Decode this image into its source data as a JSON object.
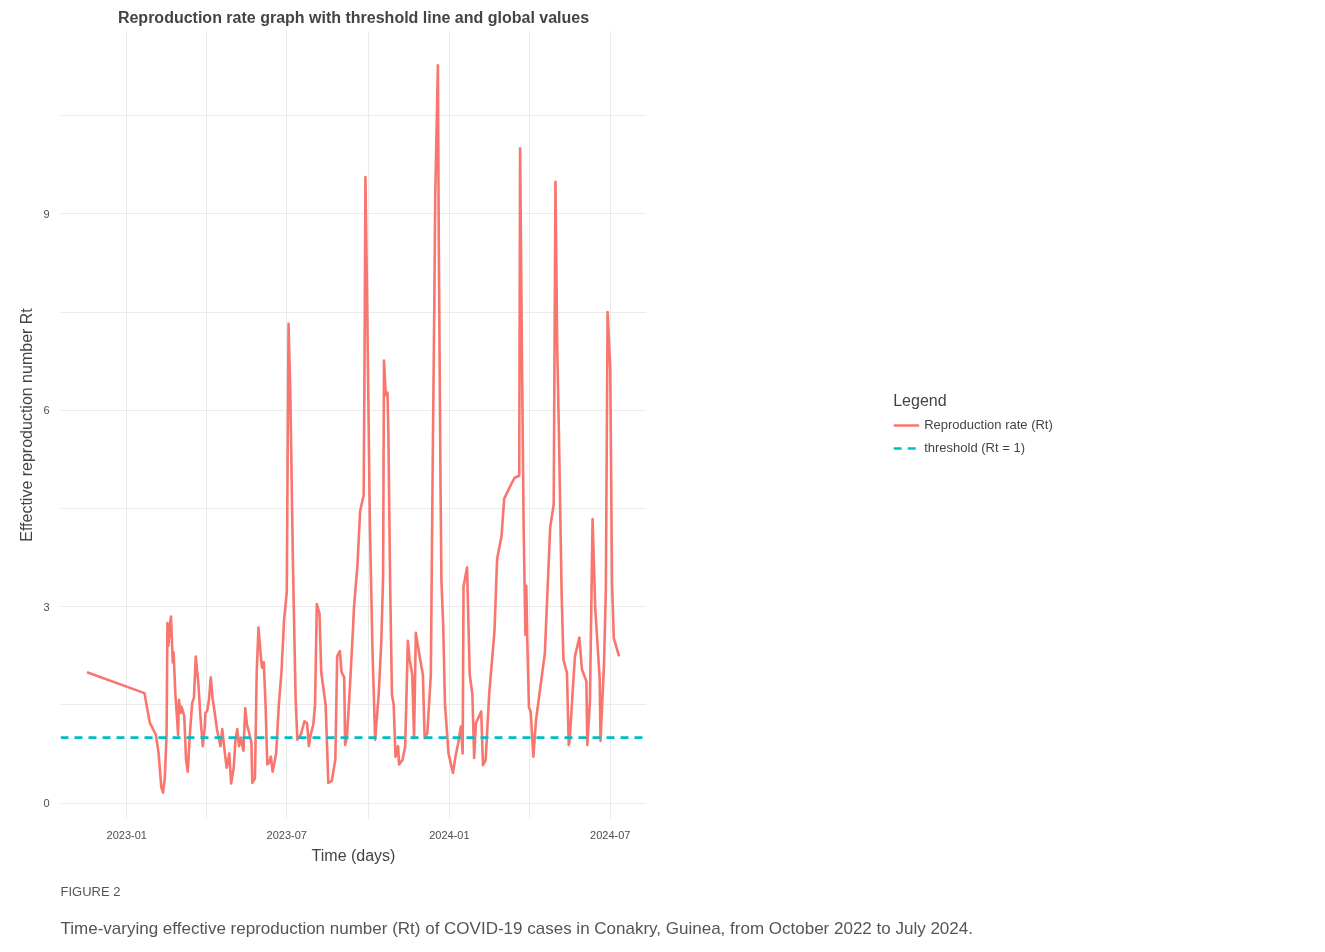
{
  "chart_data": {
    "type": "line",
    "title": "Reproduction rate graph with threshold line and global values",
    "xlabel": "Time (days)",
    "ylabel": "Effective reproduction number Rt",
    "legend_title": "Legend",
    "x": [
      "2022-11-17",
      "2023-01-21",
      "2023-01-27",
      "2023-02-03",
      "2023-02-06",
      "2023-02-09",
      "2023-02-11",
      "2023-02-13",
      "2023-02-15",
      "2023-02-16",
      "2023-02-17",
      "2023-02-19",
      "2023-02-20",
      "2023-02-22",
      "2023-02-23",
      "2023-02-25",
      "2023-02-27",
      "2023-02-28",
      "2023-03-01",
      "2023-03-03",
      "2023-03-04",
      "2023-03-07",
      "2023-03-09",
      "2023-03-11",
      "2023-03-13",
      "2023-03-14",
      "2023-03-16",
      "2023-03-18",
      "2023-03-20",
      "2023-03-23",
      "2023-03-25",
      "2023-03-26",
      "2023-03-28",
      "2023-03-30",
      "2023-03-31",
      "2023-04-02",
      "2023-04-04",
      "2023-04-06",
      "2023-04-08",
      "2023-04-11",
      "2023-04-13",
      "2023-04-17",
      "2023-04-19",
      "2023-04-22",
      "2023-04-24",
      "2023-04-27",
      "2023-04-29",
      "2023-05-02",
      "2023-05-04",
      "2023-05-06",
      "2023-05-08",
      "2023-05-10",
      "2023-05-13",
      "2023-05-15",
      "2023-05-17",
      "2023-05-20",
      "2023-05-22",
      "2023-05-23",
      "2023-05-26",
      "2023-05-28",
      "2023-05-30",
      "2023-06-02",
      "2023-06-03",
      "2023-06-05",
      "2023-06-07",
      "2023-06-09",
      "2023-06-11",
      "2023-06-13",
      "2023-06-15",
      "2023-06-19",
      "2023-06-22",
      "2023-06-25",
      "2023-06-28",
      "2023-07-01",
      "2023-07-03",
      "2023-07-05",
      "2023-07-08",
      "2023-07-11",
      "2023-07-13",
      "2023-07-17",
      "2023-07-21",
      "2023-07-24",
      "2023-07-26",
      "2023-07-28",
      "2023-07-31",
      "2023-08-02",
      "2023-08-04",
      "2023-08-07",
      "2023-08-09",
      "2023-08-14",
      "2023-08-17",
      "2023-08-21",
      "2023-08-25",
      "2023-08-27",
      "2023-08-30",
      "2023-09-01",
      "2023-09-04",
      "2023-09-05",
      "2023-09-07",
      "2023-09-10",
      "2023-09-14",
      "2023-09-15",
      "2023-09-19",
      "2023-09-22",
      "2023-09-26",
      "2023-09-27",
      "2023-09-28",
      "2023-09-30",
      "2023-10-03",
      "2023-10-06",
      "2023-10-09",
      "2023-10-13",
      "2023-10-16",
      "2023-10-18",
      "2023-10-19",
      "2023-10-21",
      "2023-10-23",
      "2023-10-24",
      "2023-10-26",
      "2023-10-28",
      "2023-10-30",
      "2023-11-01",
      "2023-11-04",
      "2023-11-05",
      "2023-11-09",
      "2023-11-12",
      "2023-11-15",
      "2023-11-17",
      "2023-11-20",
      "2023-11-22",
      "2023-11-24",
      "2023-11-29",
      "2023-12-02",
      "2023-12-04",
      "2023-12-07",
      "2023-12-11",
      "2023-12-13",
      "2023-12-15",
      "2023-12-16",
      "2023-12-19",
      "2023-12-20",
      "2023-12-22",
      "2023-12-23",
      "2023-12-25",
      "2023-12-27",
      "2023-12-31",
      "2024-01-05",
      "2024-01-08",
      "2024-01-11",
      "2024-01-14",
      "2024-01-16",
      "2024-01-17",
      "2024-01-21",
      "2024-01-24",
      "2024-01-27",
      "2024-01-29",
      "2024-01-31",
      "2024-02-06",
      "2024-02-08",
      "2024-02-11",
      "2024-02-15",
      "2024-02-21",
      "2024-02-24",
      "2024-02-29",
      "2024-03-03",
      "2024-03-12",
      "2024-03-15",
      "2024-03-20",
      "2024-03-21",
      "2024-03-23",
      "2024-03-25",
      "2024-03-27",
      "2024-03-28",
      "2024-03-29",
      "2024-03-31",
      "2024-04-02",
      "2024-04-05",
      "2024-04-08",
      "2024-04-18",
      "2024-04-24",
      "2024-04-28",
      "2024-04-30",
      "2024-05-02",
      "2024-05-04",
      "2024-05-07",
      "2024-05-09",
      "2024-05-13",
      "2024-05-15",
      "2024-05-16",
      "2024-05-22",
      "2024-05-27",
      "2024-05-30",
      "2024-06-04",
      "2024-06-05",
      "2024-06-08",
      "2024-06-11",
      "2024-06-14",
      "2024-06-19",
      "2024-06-20",
      "2024-06-24",
      "2024-06-26",
      "2024-06-28",
      "2024-07-01",
      "2024-07-03",
      "2024-07-05",
      "2024-07-11"
    ],
    "series": [
      {
        "name": "Reproduction rate (Rt)",
        "color": "#f8766d",
        "values": [
          2.0,
          1.68,
          1.23,
          1.04,
          0.76,
          0.25,
          0.16,
          0.38,
          1.04,
          2.75,
          2.4,
          2.73,
          2.85,
          2.15,
          2.3,
          1.65,
          1.27,
          1.04,
          1.58,
          1.38,
          1.47,
          1.33,
          0.67,
          0.48,
          0.97,
          1.17,
          1.53,
          1.61,
          2.24,
          1.83,
          1.38,
          1.2,
          0.87,
          1.13,
          1.38,
          1.41,
          1.58,
          1.92,
          1.61,
          1.33,
          1.13,
          0.87,
          1.13,
          0.76,
          0.54,
          0.76,
          0.3,
          0.54,
          0.97,
          1.13,
          0.87,
          1.0,
          0.8,
          1.45,
          1.2,
          1.04,
          0.92,
          0.31,
          0.38,
          2.0,
          2.68,
          2.19,
          2.07,
          2.15,
          1.5,
          0.59,
          0.62,
          0.71,
          0.48,
          0.76,
          1.5,
          2.0,
          2.81,
          3.22,
          7.32,
          6.27,
          3.64,
          1.61,
          0.97,
          1.05,
          1.25,
          1.22,
          0.87,
          1.04,
          1.2,
          1.5,
          3.04,
          2.9,
          2.0,
          1.5,
          0.31,
          0.34,
          0.67,
          2.24,
          2.32,
          2.0,
          1.92,
          0.89,
          1.0,
          1.66,
          2.68,
          2.98,
          3.64,
          4.46,
          4.7,
          6.76,
          9.56,
          7.58,
          4.29,
          2.32,
          0.97,
          1.66,
          2.48,
          3.47,
          6.76,
          6.23,
          6.27,
          5.61,
          3.31,
          1.66,
          1.5,
          0.71,
          0.87,
          0.59,
          0.66,
          0.87,
          2.48,
          2.19,
          1.96,
          0.99,
          2.6,
          2.19,
          1.96,
          0.99,
          1.07,
          1.96,
          5.03,
          7.71,
          9.29,
          11.27,
          8.54,
          4.8,
          3.39,
          2.71,
          1.51,
          0.76,
          0.46,
          0.72,
          0.92,
          1.17,
          0.76,
          3.31,
          3.6,
          1.96,
          1.66,
          0.69,
          1.22,
          1.4,
          0.58,
          0.66,
          1.66,
          2.63,
          3.73,
          4.08,
          4.65,
          4.9,
          4.97,
          5.0,
          10.0,
          6.96,
          4.21,
          2.57,
          3.32,
          2.57,
          1.46,
          1.4,
          0.71,
          1.27,
          2.29,
          4.21,
          4.56,
          9.49,
          6.96,
          5.58,
          3.19,
          2.19,
          1.99,
          0.89,
          0.95,
          2.24,
          2.53,
          2.04,
          1.86,
          0.89,
          1.55,
          4.34,
          2.98,
          1.91,
          0.95,
          2.15,
          3.26,
          7.5,
          6.64,
          3.36,
          2.52,
          2.24
        ]
      }
    ],
    "ref_lines": [
      {
        "axis": "y",
        "value": 1,
        "label": "threshold (Rt = 1)",
        "color": "#00bfc4",
        "line_style": "dashed"
      }
    ],
    "xlim": [
      "2022-10-18",
      "2024-08-11"
    ],
    "ylim": [
      -0.25,
      11.8
    ],
    "xticks": [
      "2023-01",
      {
        "value": "2023-04",
        "label": null
      },
      "2023-07",
      {
        "value": "2023-10",
        "label": null
      },
      "2024-01",
      {
        "value": "2024-04",
        "label": null
      },
      "2024-07"
    ],
    "yticks": [
      0,
      {
        "value": 1.5,
        "label": null
      },
      3,
      {
        "value": 4.5,
        "label": null
      },
      6,
      {
        "value": 7.5,
        "label": null
      },
      9,
      {
        "value": 10.5,
        "label": null
      }
    ],
    "grid": true,
    "legend": "right",
    "line_style": "solid",
    "annotations": [
      "FIGURE 2",
      "Time-varying effective reproduction number (Rt) of COVID-19 cases in Conakry, Guinea, from October 2022 to July 2024."
    ]
  }
}
